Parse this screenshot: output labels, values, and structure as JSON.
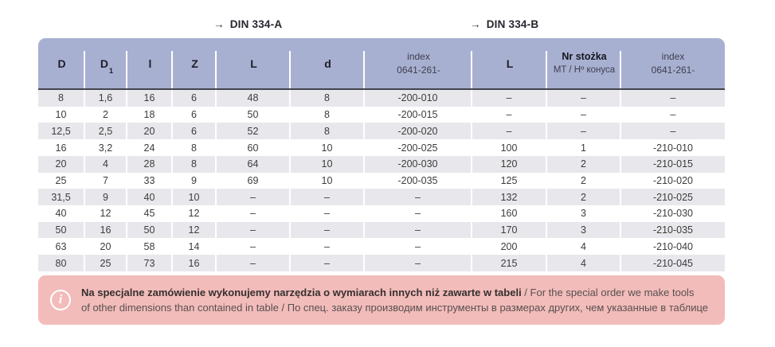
{
  "din_labels": {
    "arrow": "→",
    "a": "DIN 334-A",
    "b": "DIN 334-B"
  },
  "colors": {
    "header_bg": "#a8b0d2",
    "header_bottom_line": "#44444e",
    "row_alt_bg": "#e8e8ec",
    "note_bg": "#f2bcba",
    "cell_text": "#3c3c3c"
  },
  "table": {
    "header": {
      "d": "D",
      "d1_base": "D",
      "d1_sub": "1",
      "l_small": "l",
      "z": "Z",
      "l_cap": "L",
      "d_small": "d",
      "index_a_label": "index",
      "index_a_code": "0641-261-",
      "l_b": "L",
      "nr_stozka": "Nr stożka",
      "nr_stozka_sub": "MT / Hº конуса",
      "index_b_label": "index",
      "index_b_code": "0641-261-"
    },
    "rows": [
      [
        "8",
        "1,6",
        "16",
        "6",
        "48",
        "8",
        "-200-010",
        "–",
        "–",
        "–"
      ],
      [
        "10",
        "2",
        "18",
        "6",
        "50",
        "8",
        "-200-015",
        "–",
        "–",
        "–"
      ],
      [
        "12,5",
        "2,5",
        "20",
        "6",
        "52",
        "8",
        "-200-020",
        "–",
        "–",
        "–"
      ],
      [
        "16",
        "3,2",
        "24",
        "8",
        "60",
        "10",
        "-200-025",
        "100",
        "1",
        "-210-010"
      ],
      [
        "20",
        "4",
        "28",
        "8",
        "64",
        "10",
        "-200-030",
        "120",
        "2",
        "-210-015"
      ],
      [
        "25",
        "7",
        "33",
        "9",
        "69",
        "10",
        "-200-035",
        "125",
        "2",
        "-210-020"
      ],
      [
        "31,5",
        "9",
        "40",
        "10",
        "–",
        "–",
        "–",
        "132",
        "2",
        "-210-025"
      ],
      [
        "40",
        "12",
        "45",
        "12",
        "–",
        "–",
        "–",
        "160",
        "3",
        "-210-030"
      ],
      [
        "50",
        "16",
        "50",
        "12",
        "–",
        "–",
        "–",
        "170",
        "3",
        "-210-035"
      ],
      [
        "63",
        "20",
        "58",
        "14",
        "–",
        "–",
        "–",
        "200",
        "4",
        "-210-040"
      ],
      [
        "80",
        "25",
        "73",
        "16",
        "–",
        "–",
        "–",
        "215",
        "4",
        "-210-045"
      ]
    ]
  },
  "note": {
    "icon": "i",
    "bold_text": "Na specjalne zamówienie wykonujemy narzędzia o wymiarach innych niż zawarte w tabeli",
    "regular_text_line1": " / For the special order we make tools",
    "line2": "of other dimensions than contained in table / По спец. заказу производим инструменты в размерах других, чем указанные в таблице"
  }
}
